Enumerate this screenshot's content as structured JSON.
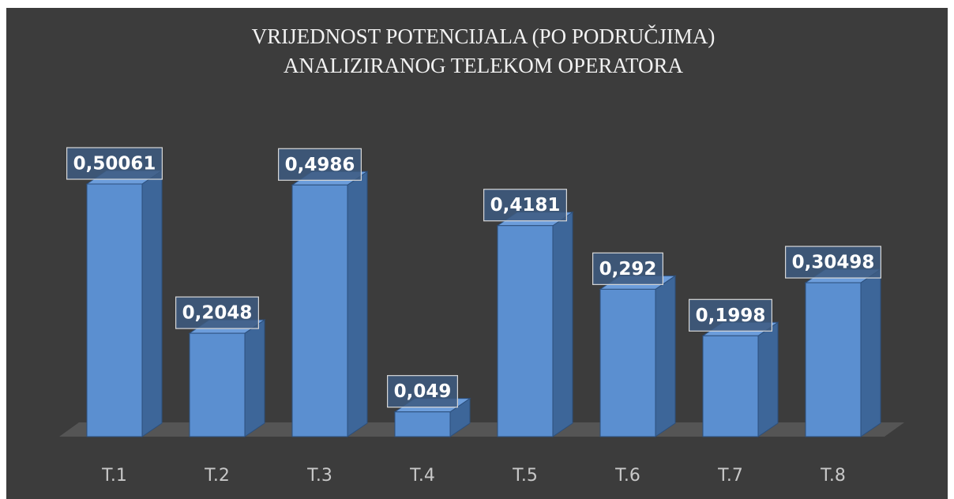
{
  "chart_data": {
    "type": "bar3d",
    "title": [
      "VRIJEDNOST POTENCIJALA (PO PODRUČJIMA)",
      "ANALIZIRANOG TELEKOM OPERATORA"
    ],
    "categories": [
      "T.1",
      "T.2",
      "T.3",
      "T.4",
      "T.5",
      "T.6",
      "T.7",
      "T.8"
    ],
    "values": [
      0.50061,
      0.2048,
      0.4986,
      0.049,
      0.4181,
      0.292,
      0.1998,
      0.30498
    ],
    "value_labels": [
      "0,50061",
      "0,2048",
      "0,4986",
      "0,049",
      "0,4181",
      "0,292",
      "0,1998",
      "0,30498"
    ],
    "color": "#5b8fd0"
  }
}
